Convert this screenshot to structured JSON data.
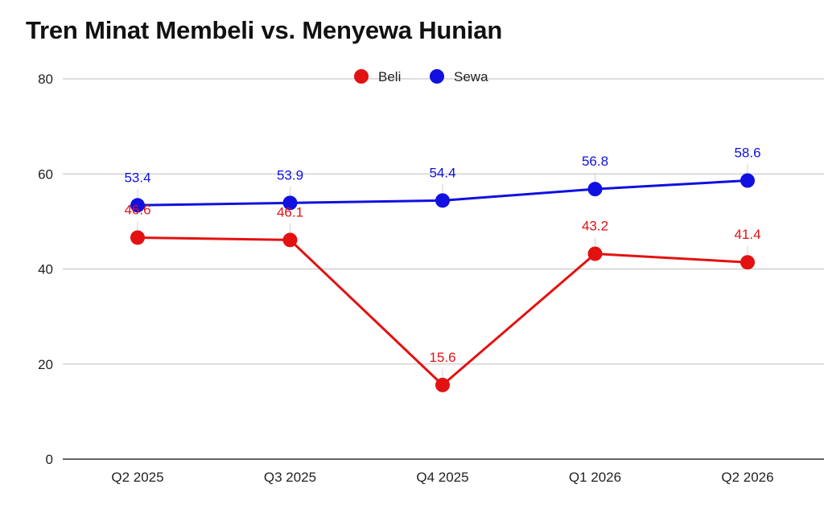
{
  "chart_data": {
    "type": "line",
    "title": "Tren Minat Membeli vs. Menyewa Hunian",
    "categories": [
      "Q2 2025",
      "Q3 2025",
      "Q4 2025",
      "Q1 2026",
      "Q2 2026"
    ],
    "series": [
      {
        "name": "Beli",
        "values": [
          46.6,
          46.1,
          15.6,
          43.2,
          41.4
        ],
        "color": "#e31111"
      },
      {
        "name": "Sewa",
        "values": [
          53.4,
          53.9,
          54.4,
          56.8,
          58.6
        ],
        "color": "#1010e0"
      }
    ],
    "ylim": [
      0,
      80
    ],
    "yticks": [
      0,
      20,
      40,
      60,
      80
    ],
    "xlabel": "",
    "ylabel": "",
    "grid": true,
    "legend": "top-center",
    "data_labels": true
  }
}
